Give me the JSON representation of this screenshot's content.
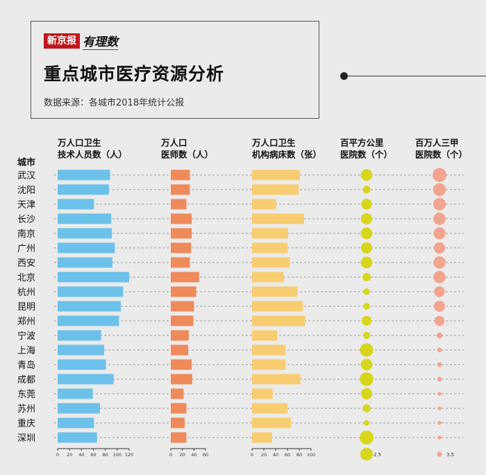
{
  "header": {
    "logo_main": "新京报",
    "logo_sub": "有理数",
    "title": "重点城市医疗资源分析",
    "source": "数据来源：各城市2018年统计公报"
  },
  "colors": {
    "health_workers": "#6cc1ea",
    "doctors": "#ef8a5b",
    "beds": "#f8cd71",
    "hospital_density": "#d7d61d",
    "top_hospitals": "#f2a48f"
  },
  "chart_data": {
    "type": "bar",
    "city_axis_label": "城市",
    "categories": [
      "武汉",
      "沈阳",
      "天津",
      "长沙",
      "南京",
      "广州",
      "西安",
      "北京",
      "杭州",
      "昆明",
      "郑州",
      "宁波",
      "上海",
      "青岛",
      "成都",
      "东莞",
      "苏州",
      "重庆",
      "深圳"
    ],
    "series": [
      {
        "name": "万人口卫生技术人员数（人）",
        "name_lines": [
          "万人口卫生",
          "技术人员数（人）"
        ],
        "kind": "bar",
        "ticks": [
          0,
          20,
          40,
          60,
          80,
          100,
          120
        ],
        "xlim": [
          0,
          120
        ],
        "values": [
          88,
          86,
          61,
          90,
          91,
          96,
          92,
          120,
          110,
          106,
          103,
          73,
          78,
          81,
          94,
          59,
          71,
          61,
          66
        ]
      },
      {
        "name": "万人口医师数（人）",
        "name_lines": [
          "万人口",
          "医师数（人）"
        ],
        "kind": "bar",
        "ticks": [
          0,
          20,
          40,
          60
        ],
        "xlim": [
          0,
          60
        ],
        "values": [
          33,
          33,
          27,
          36,
          36,
          35,
          33,
          49,
          44,
          40,
          39,
          31,
          30,
          36,
          37,
          22,
          27,
          24,
          27
        ]
      },
      {
        "name": "万人口卫生机构病床数（张）",
        "name_lines": [
          "万人口卫生",
          "机构病床数（张）"
        ],
        "kind": "bar",
        "ticks": [
          0,
          20,
          40,
          60,
          80,
          100
        ],
        "xlim": [
          0,
          100
        ],
        "values": [
          81,
          79,
          41,
          88,
          61,
          60,
          64,
          54,
          77,
          86,
          90,
          43,
          57,
          57,
          82,
          35,
          60,
          66,
          34
        ]
      },
      {
        "name": "百平方公里医院数（个）",
        "name_lines": [
          "百平方公里",
          "医院数（个）"
        ],
        "kind": "dot",
        "legend_value": "2.5",
        "legend_ref": 2.5,
        "values": [
          2.1,
          0.9,
          1.8,
          2.0,
          2.1,
          2.0,
          2.1,
          1.1,
          0.7,
          0.7,
          1.5,
          0.8,
          2.8,
          2.1,
          2.9,
          2.0,
          1.0,
          0.5,
          3.0
        ]
      },
      {
        "name": "百万人三甲医院数（个）",
        "name_lines": [
          "百万人三甲",
          "医院数（个）"
        ],
        "kind": "dot",
        "legend_value": "3.5",
        "legend_ref": 3.5,
        "values": [
          27,
          23,
          22,
          21,
          20,
          18,
          21,
          21,
          16,
          17,
          14,
          5,
          3,
          3,
          3,
          2,
          2,
          2,
          2
        ]
      }
    ]
  }
}
